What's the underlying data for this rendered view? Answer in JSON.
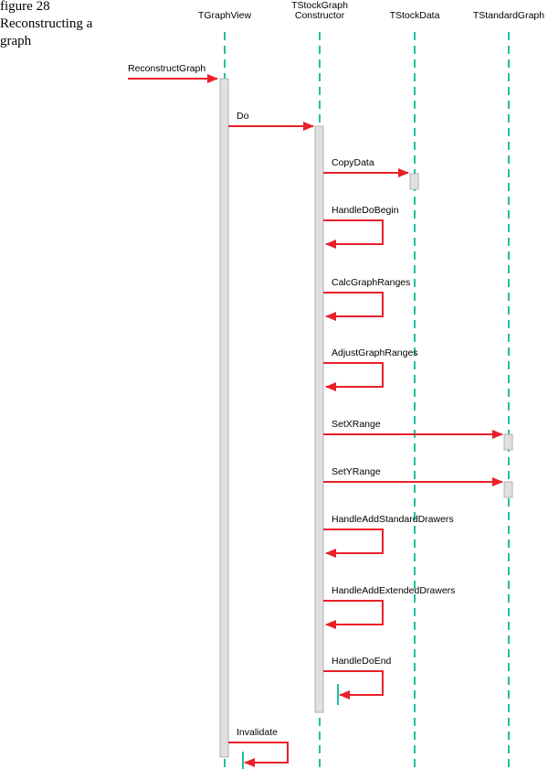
{
  "caption": [
    "figure 28",
    "Reconstructing a",
    "graph"
  ],
  "lifelines": [
    {
      "name": [
        "TGraphView"
      ]
    },
    {
      "name": [
        "TStockGraph",
        "Constructor"
      ]
    },
    {
      "name": [
        "TStockData"
      ]
    },
    {
      "name": [
        "TStandardGraph"
      ]
    }
  ],
  "messages": [
    {
      "label": "ReconstructGraph"
    },
    {
      "label": "Do"
    },
    {
      "label": "CopyData"
    },
    {
      "label": "HandleDoBegin"
    },
    {
      "label": "CalcGraphRanges"
    },
    {
      "label": "AdjustGraphRanges"
    },
    {
      "label": "SetXRange"
    },
    {
      "label": "SetYRange"
    },
    {
      "label": "HandleAddStandardDrawers"
    },
    {
      "label": "HandleAddExtendedDrawers"
    },
    {
      "label": "HandleDoEnd"
    },
    {
      "label": "Invalidate"
    }
  ]
}
